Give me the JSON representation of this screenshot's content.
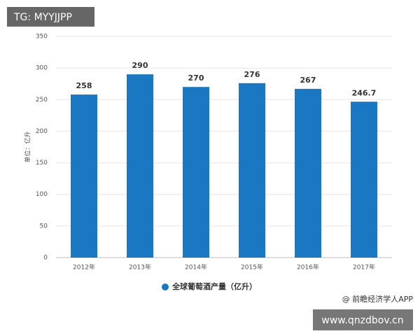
{
  "chart_data": {
    "type": "bar",
    "y_label": "单位：亿升",
    "categories": [
      "2012年",
      "2013年",
      "2014年",
      "2015年",
      "2016年",
      "2017年"
    ],
    "series": [
      {
        "name": "全球葡萄酒产量（亿升）",
        "color": "#1a78c2",
        "values": [
          258,
          290,
          270,
          276,
          267,
          246.7
        ]
      }
    ],
    "ylim": [
      0,
      350
    ],
    "yticks": [
      0,
      50,
      100,
      150,
      200,
      250,
      300,
      350
    ],
    "grid": true,
    "annotations": [
      "TG: MYYJJPP",
      "@ 前瞻经济学人APP",
      "www.qnzdbov.cn"
    ]
  }
}
